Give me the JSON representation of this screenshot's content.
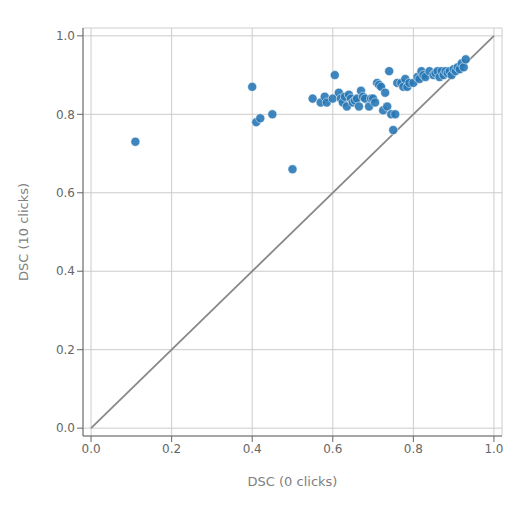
{
  "chart_data": {
    "type": "scatter",
    "xlabel": "DSC (0 clicks)",
    "ylabel": "DSC (10 clicks)",
    "xlim": [
      -0.02,
      1.02
    ],
    "ylim": [
      -0.02,
      1.02
    ],
    "xticks": [
      {
        "value": 0.0,
        "label": "0.0"
      },
      0.2,
      0.4,
      0.6,
      0.8,
      {
        "value": 1.0,
        "label": "1.0"
      }
    ],
    "yticks": [
      {
        "value": 0.0,
        "label": "0.0"
      },
      0.2,
      0.4,
      0.6,
      0.8,
      {
        "value": 1.0,
        "label": "1.0"
      }
    ],
    "grid": true,
    "series": [
      {
        "type": "line",
        "color": "#888888",
        "x": [
          0,
          1
        ],
        "values": [
          0,
          1
        ]
      },
      {
        "type": "scatter",
        "color": "#2878b5",
        "x": [
          0.11,
          0.4,
          0.41,
          0.42,
          0.45,
          0.5,
          0.55,
          0.57,
          0.58,
          0.585,
          0.6,
          0.605,
          0.615,
          0.62,
          0.625,
          0.63,
          0.635,
          0.64,
          0.645,
          0.65,
          0.655,
          0.66,
          0.665,
          0.67,
          0.675,
          0.68,
          0.69,
          0.695,
          0.7,
          0.705,
          0.71,
          0.715,
          0.72,
          0.725,
          0.73,
          0.735,
          0.74,
          0.745,
          0.75,
          0.755,
          0.76,
          0.77,
          0.775,
          0.78,
          0.785,
          0.79,
          0.8,
          0.81,
          0.815,
          0.82,
          0.825,
          0.83,
          0.84,
          0.85,
          0.855,
          0.86,
          0.865,
          0.87,
          0.875,
          0.88,
          0.885,
          0.89,
          0.895,
          0.9,
          0.905,
          0.91,
          0.915,
          0.92,
          0.925,
          0.93
        ],
        "values": [
          0.73,
          0.87,
          0.78,
          0.79,
          0.8,
          0.66,
          0.84,
          0.83,
          0.845,
          0.83,
          0.84,
          0.9,
          0.855,
          0.84,
          0.83,
          0.845,
          0.82,
          0.85,
          0.84,
          0.83,
          0.835,
          0.84,
          0.82,
          0.86,
          0.845,
          0.84,
          0.82,
          0.84,
          0.84,
          0.83,
          0.88,
          0.875,
          0.87,
          0.81,
          0.855,
          0.82,
          0.91,
          0.8,
          0.76,
          0.8,
          0.88,
          0.88,
          0.87,
          0.89,
          0.87,
          0.88,
          0.88,
          0.895,
          0.89,
          0.91,
          0.9,
          0.895,
          0.91,
          0.9,
          0.905,
          0.91,
          0.895,
          0.91,
          0.9,
          0.91,
          0.905,
          0.91,
          0.9,
          0.915,
          0.91,
          0.92,
          0.915,
          0.93,
          0.92,
          0.94
        ]
      }
    ]
  }
}
